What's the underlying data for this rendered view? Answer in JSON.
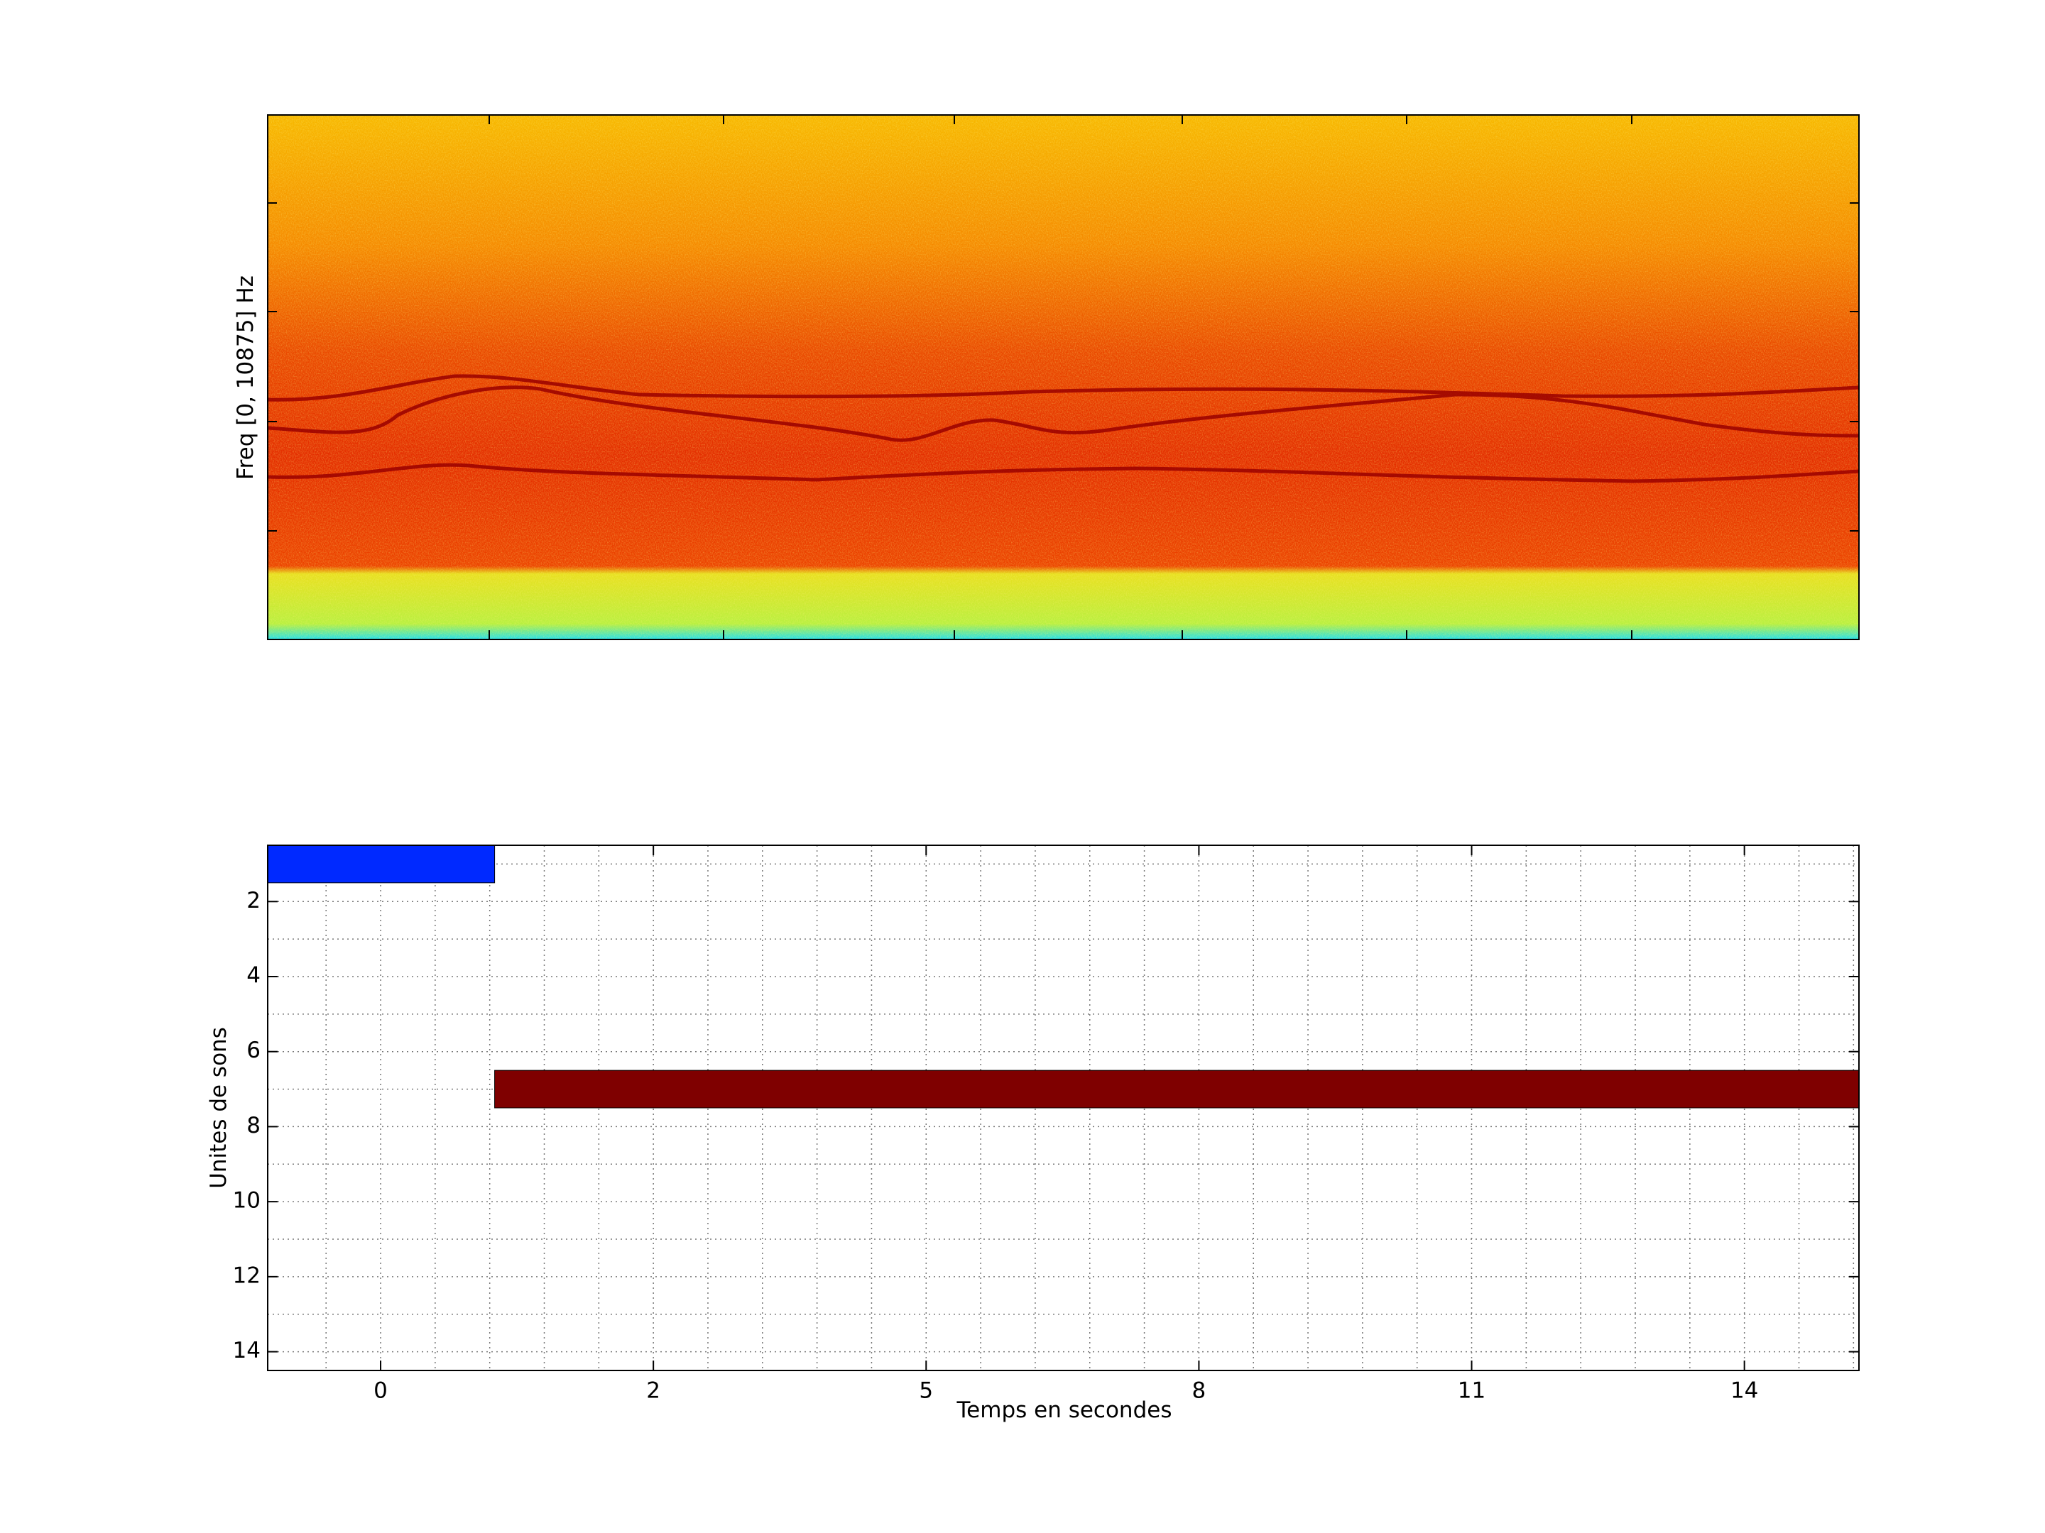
{
  "chart_data": [
    {
      "type": "spectrogram",
      "ylabel": "Freq [0, 10875] Hz"
    },
    {
      "type": "timeline",
      "xlabel": "Temps en secondes",
      "ylabel": "Unites de sons",
      "xlim": [
        -2.07,
        27.1
      ],
      "xticks": [
        {
          "value": 0,
          "label": "0"
        },
        {
          "value": 5,
          "label": "2"
        },
        {
          "value": 10,
          "label": "5"
        },
        {
          "value": 15,
          "label": "8"
        },
        {
          "value": 20,
          "label": "11"
        },
        {
          "value": 25,
          "label": "14"
        }
      ],
      "xminorticks": [
        -1,
        1,
        2,
        3,
        4,
        6,
        7,
        8,
        9,
        11,
        12,
        13,
        14,
        16,
        17,
        18,
        19,
        21,
        22,
        23,
        24,
        26,
        27
      ],
      "ylim": [
        0.5,
        14.5
      ],
      "y_reversed": true,
      "yticks": [
        2,
        4,
        6,
        8,
        10,
        12,
        14
      ],
      "yminorticks": [
        1,
        3,
        5,
        7,
        9,
        11,
        13
      ],
      "grid": true,
      "bars": [
        {
          "row": 1,
          "start": -2.07,
          "end": 2.09,
          "color": "#0029ff"
        },
        {
          "row": 7,
          "start": 2.09,
          "end": 27.1,
          "color": "#7f0000"
        }
      ]
    }
  ]
}
